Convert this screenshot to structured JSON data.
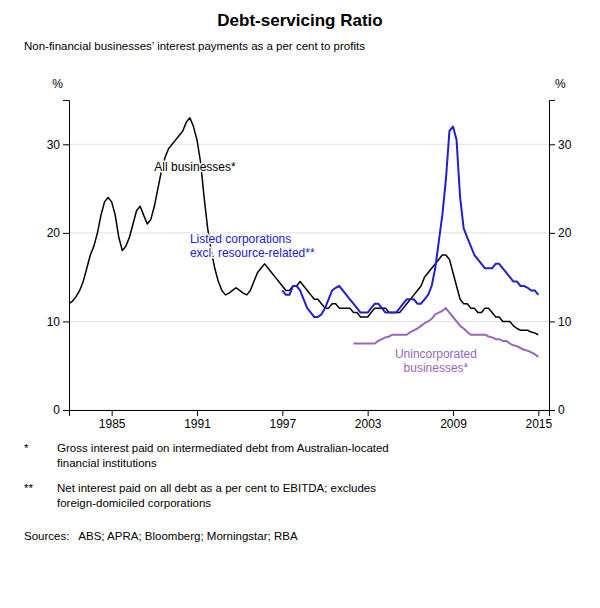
{
  "chart_data": {
    "type": "line",
    "title": "Debt-servicing Ratio",
    "subtitle": "Non-financial businesses’ interest payments as a per cent to profits",
    "ylabel": "%",
    "y2label": "%",
    "xlim": [
      1982.0,
      2015.75
    ],
    "xticks": [
      1985,
      1991,
      1997,
      2003,
      2009,
      2015
    ],
    "ylim": [
      0,
      35
    ],
    "yticks": [
      0,
      10,
      20,
      30
    ],
    "y2lim": [
      0,
      35
    ],
    "y2ticks": [
      0,
      10,
      20,
      30
    ],
    "grid": true,
    "series": [
      {
        "color": "#000000",
        "x": [
          1982.0,
          1982.25,
          1982.5,
          1982.75,
          1983.0,
          1983.25,
          1983.5,
          1983.75,
          1984.0,
          1984.25,
          1984.5,
          1984.75,
          1985.0,
          1985.25,
          1985.5,
          1985.75,
          1986.0,
          1986.25,
          1986.5,
          1986.75,
          1987.0,
          1987.25,
          1987.5,
          1987.75,
          1988.0,
          1988.25,
          1988.5,
          1988.75,
          1989.0,
          1989.25,
          1989.5,
          1989.75,
          1990.0,
          1990.25,
          1990.5,
          1990.75,
          1991.0,
          1991.25,
          1991.5,
          1991.75,
          1992.0,
          1992.25,
          1992.5,
          1992.75,
          1993.0,
          1993.25,
          1993.5,
          1993.75,
          1994.0,
          1994.25,
          1994.5,
          1994.75,
          1995.0,
          1995.25,
          1995.5,
          1995.75,
          1996.0,
          1996.25,
          1996.5,
          1996.75,
          1997.0,
          1997.25,
          1997.5,
          1997.75,
          1998.0,
          1998.25,
          1998.5,
          1998.75,
          1999.0,
          1999.25,
          1999.5,
          1999.75,
          2000.0,
          2000.25,
          2000.5,
          2000.75,
          2001.0,
          2001.25,
          2001.5,
          2001.75,
          2002.0,
          2002.25,
          2002.5,
          2002.75,
          2003.0,
          2003.25,
          2003.5,
          2003.75,
          2004.0,
          2004.25,
          2004.5,
          2004.75,
          2005.0,
          2005.25,
          2005.5,
          2005.75,
          2006.0,
          2006.25,
          2006.5,
          2006.75,
          2007.0,
          2007.25,
          2007.5,
          2007.75,
          2008.0,
          2008.25,
          2008.5,
          2008.75,
          2009.0,
          2009.25,
          2009.5,
          2009.75,
          2010.0,
          2010.25,
          2010.5,
          2010.75,
          2011.0,
          2011.25,
          2011.5,
          2011.75,
          2012.0,
          2012.25,
          2012.5,
          2012.75,
          2013.0,
          2013.25,
          2013.5,
          2013.75,
          2014.0,
          2014.25,
          2014.5,
          2014.75,
          2015.0
        ],
        "values": [
          12.0,
          12.3,
          12.8,
          13.5,
          14.5,
          16.0,
          17.5,
          18.5,
          20.0,
          22.0,
          23.5,
          24.0,
          23.5,
          22.0,
          19.5,
          18.0,
          18.5,
          19.5,
          21.0,
          22.5,
          23.0,
          22.0,
          21.0,
          21.5,
          23.0,
          25.0,
          27.0,
          28.5,
          29.5,
          30.0,
          30.5,
          31.0,
          31.5,
          32.5,
          33.0,
          32.0,
          30.5,
          28.0,
          24.0,
          20.5,
          18.0,
          16.0,
          14.5,
          13.5,
          13.0,
          13.2,
          13.5,
          13.8,
          13.5,
          13.2,
          13.0,
          13.5,
          14.5,
          15.5,
          16.0,
          16.5,
          16.0,
          15.5,
          15.0,
          14.5,
          14.0,
          13.5,
          13.5,
          14.0,
          14.0,
          14.5,
          14.0,
          13.5,
          13.0,
          12.5,
          12.5,
          12.0,
          11.5,
          11.5,
          12.0,
          12.0,
          11.5,
          11.5,
          11.5,
          11.5,
          11.0,
          11.0,
          10.5,
          10.5,
          10.5,
          11.0,
          11.5,
          11.5,
          11.5,
          11.5,
          11.0,
          11.0,
          11.0,
          11.0,
          11.5,
          12.0,
          12.5,
          13.0,
          13.5,
          14.0,
          15.0,
          15.5,
          16.0,
          16.5,
          17.0,
          17.5,
          17.5,
          17.0,
          15.5,
          14.0,
          12.5,
          12.0,
          12.0,
          11.5,
          11.5,
          11.0,
          11.0,
          11.5,
          11.5,
          11.0,
          10.5,
          10.5,
          10.0,
          10.0,
          10.0,
          9.5,
          9.2,
          9.0,
          9.0,
          9.0,
          8.8,
          8.7,
          8.5
        ]
      },
      {
        "color": "#2020cc",
        "x": [
          1997.0,
          1997.25,
          1997.5,
          1997.75,
          1998.0,
          1998.25,
          1998.5,
          1998.75,
          1999.0,
          1999.25,
          1999.5,
          1999.75,
          2000.0,
          2000.25,
          2000.5,
          2000.75,
          2001.0,
          2001.25,
          2001.5,
          2001.75,
          2002.0,
          2002.25,
          2002.5,
          2002.75,
          2003.0,
          2003.25,
          2003.5,
          2003.75,
          2004.0,
          2004.25,
          2004.5,
          2004.75,
          2005.0,
          2005.25,
          2005.5,
          2005.75,
          2006.0,
          2006.25,
          2006.5,
          2006.75,
          2007.0,
          2007.25,
          2007.5,
          2007.75,
          2008.0,
          2008.25,
          2008.5,
          2008.75,
          2009.0,
          2009.25,
          2009.5,
          2009.75,
          2010.0,
          2010.25,
          2010.5,
          2010.75,
          2011.0,
          2011.25,
          2011.5,
          2011.75,
          2012.0,
          2012.25,
          2012.5,
          2012.75,
          2013.0,
          2013.25,
          2013.5,
          2013.75,
          2014.0,
          2014.25,
          2014.5,
          2014.75,
          2015.0
        ],
        "values": [
          13.5,
          13.0,
          13.0,
          14.0,
          14.0,
          13.5,
          12.5,
          11.5,
          11.0,
          10.5,
          10.5,
          10.8,
          11.5,
          12.5,
          13.5,
          13.8,
          14.0,
          13.5,
          13.0,
          12.5,
          12.0,
          11.5,
          11.0,
          11.0,
          11.0,
          11.5,
          12.0,
          12.0,
          11.5,
          11.0,
          11.0,
          11.0,
          11.0,
          11.5,
          12.0,
          12.5,
          12.5,
          12.5,
          12.0,
          12.0,
          12.5,
          13.0,
          14.0,
          16.0,
          19.0,
          22.0,
          26.0,
          31.5,
          32.0,
          30.5,
          24.0,
          20.5,
          19.5,
          18.5,
          17.5,
          17.0,
          16.5,
          16.0,
          16.0,
          16.0,
          16.5,
          16.5,
          16.0,
          15.5,
          15.0,
          14.5,
          14.5,
          14.0,
          14.0,
          13.8,
          13.5,
          13.5,
          13.0
        ]
      },
      {
        "color": "#9966bb",
        "x": [
          2002.0,
          2002.25,
          2002.5,
          2002.75,
          2003.0,
          2003.25,
          2003.5,
          2003.75,
          2004.0,
          2004.25,
          2004.5,
          2004.75,
          2005.0,
          2005.25,
          2005.5,
          2005.75,
          2006.0,
          2006.25,
          2006.5,
          2006.75,
          2007.0,
          2007.25,
          2007.5,
          2007.75,
          2008.0,
          2008.25,
          2008.5,
          2008.75,
          2009.0,
          2009.25,
          2009.5,
          2009.75,
          2010.0,
          2010.25,
          2010.5,
          2010.75,
          2011.0,
          2011.25,
          2011.5,
          2011.75,
          2012.0,
          2012.25,
          2012.5,
          2012.75,
          2013.0,
          2013.25,
          2013.5,
          2013.75,
          2014.0,
          2014.25,
          2014.5,
          2014.75,
          2015.0
        ],
        "values": [
          7.5,
          7.5,
          7.5,
          7.5,
          7.5,
          7.5,
          7.5,
          7.8,
          8.0,
          8.2,
          8.3,
          8.5,
          8.5,
          8.5,
          8.5,
          8.5,
          8.8,
          9.0,
          9.2,
          9.5,
          9.8,
          10.0,
          10.3,
          10.8,
          11.0,
          11.2,
          11.5,
          11.0,
          10.5,
          10.0,
          9.5,
          9.2,
          8.8,
          8.5,
          8.5,
          8.5,
          8.5,
          8.5,
          8.3,
          8.2,
          8.0,
          8.0,
          7.8,
          7.8,
          7.5,
          7.3,
          7.2,
          7.0,
          6.8,
          6.7,
          6.5,
          6.3,
          6.0
        ]
      }
    ],
    "annotations": [
      {
        "text": "All businesses*",
        "x": 1988.0,
        "y": 27.5,
        "color": "#000000"
      },
      {
        "text": "Listed corporations\nexcl. resource-related**",
        "x": 1990.5,
        "y": 18.5,
        "color": "#2020cc"
      },
      {
        "text": "Unincorporated\nbusinesses*",
        "x": 2007.8,
        "y": 5.5,
        "color": "#9966bb"
      }
    ],
    "footnotes": [
      {
        "marker": "*",
        "text": "Gross interest paid on intermediated debt from Australian-located\nfinancial institutions"
      },
      {
        "marker": "**",
        "text": "Net interest paid on all debt as a per cent to EBITDA; excludes\nforeign-domiciled corporations"
      }
    ],
    "source": "Sources:   ABS; APRA; Bloomberg; Morningstar; RBA"
  }
}
